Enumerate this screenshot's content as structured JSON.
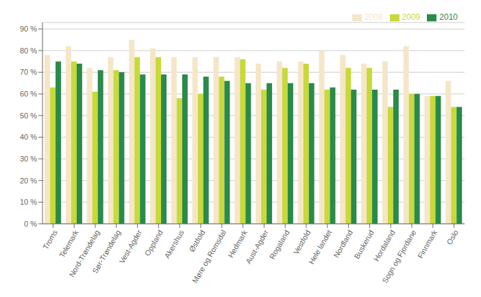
{
  "chart_data": {
    "type": "bar",
    "categories": [
      "Troms",
      "Telemark",
      "Nord-Trøndelag",
      "Sør-Trøndelag",
      "Vest-Agder",
      "Oppland",
      "Akershus",
      "Østfold",
      "Møre og Romsdal",
      "Hedmark",
      "Aust-Agder",
      "Rogaland",
      "Vestfold",
      "Hele landet",
      "Nordland",
      "Buskerud",
      "Hordaland",
      "Sogn og Fjordane",
      "Finnmark",
      "Oslo"
    ],
    "series": [
      {
        "name": "2008",
        "color": "#f5e6c8",
        "values": [
          78,
          82,
          72,
          77,
          85,
          81,
          77,
          77,
          77,
          77,
          74,
          75,
          75,
          80,
          78,
          74,
          75,
          82,
          59,
          66
        ]
      },
      {
        "name": "2009",
        "color": "#c8d93a",
        "values": [
          63,
          75,
          61,
          71,
          77,
          77,
          58,
          60,
          68,
          76,
          62,
          72,
          74,
          62,
          72,
          72,
          54,
          60,
          59,
          54
        ]
      },
      {
        "name": "2010",
        "color": "#2a8a4a",
        "values": [
          75,
          74,
          71,
          70,
          69,
          69,
          69,
          68,
          66,
          65,
          65,
          65,
          65,
          63,
          62,
          62,
          62,
          60,
          59,
          54
        ]
      }
    ],
    "ylim": [
      0,
      93
    ],
    "yticks": [
      {
        "value": 0,
        "label": "0 %"
      },
      {
        "value": 10,
        "label": "10 %"
      },
      {
        "value": 20,
        "label": "20 %"
      },
      {
        "value": 30,
        "label": "30 %"
      },
      {
        "value": 40,
        "label": "40 %"
      },
      {
        "value": 50,
        "label": "50 %"
      },
      {
        "value": 60,
        "label": "60 %"
      },
      {
        "value": 70,
        "label": "70 %"
      },
      {
        "value": 80,
        "label": "80 %"
      },
      {
        "value": 90,
        "label": "90 %"
      }
    ],
    "grid": true,
    "legend": "upper right"
  }
}
